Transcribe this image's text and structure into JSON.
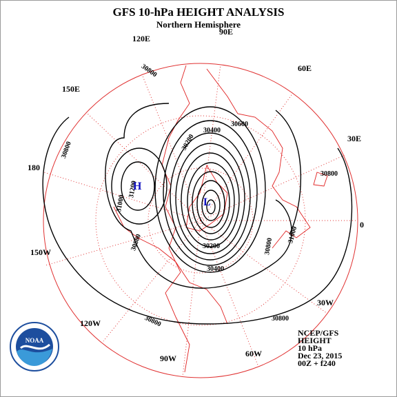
{
  "header": {
    "title": "GFS 10-hPa HEIGHT ANALYSIS",
    "subtitle": "Northern Hemisphere"
  },
  "longitudes": [
    "90E",
    "120E",
    "60E",
    "150E",
    "30E",
    "180",
    "0",
    "150W",
    "30W",
    "120W",
    "90W",
    "60W"
  ],
  "contour_labels": [
    30800,
    30800,
    30800,
    30800,
    30800,
    31200,
    31000,
    30800,
    30600,
    30400,
    30200,
    31000,
    30800,
    30400,
    30200
  ],
  "centers": {
    "high": "H",
    "low": "L"
  },
  "info": [
    "NCEP/GFS",
    "HEIGHT",
    "10 hPa",
    "Dec 23, 2015",
    "00Z + f240"
  ],
  "logo": "NOAA"
}
